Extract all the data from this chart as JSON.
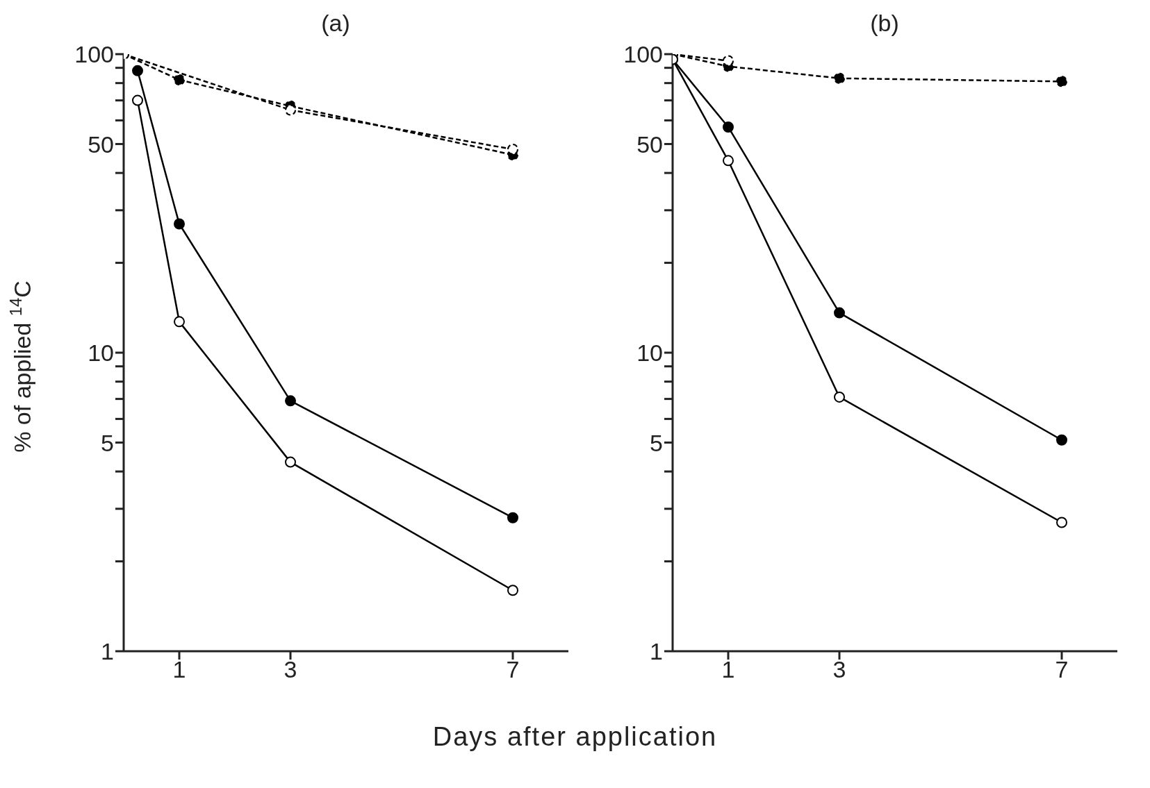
{
  "chart_data": [
    {
      "type": "line",
      "title": "(a)",
      "xlabel": "Days after application",
      "ylabel": "% of applied $^{14}$C",
      "log": "y",
      "xlim": [
        0,
        8
      ],
      "xticks": [
        1,
        3,
        7
      ],
      "ylim": [
        1,
        100
      ],
      "yticks": [
        1,
        {
          "value": 2,
          "label": null
        },
        {
          "value": 3,
          "label": null
        },
        {
          "value": 4,
          "label": null
        },
        5,
        {
          "value": 6,
          "label": null
        },
        {
          "value": 7,
          "label": null
        },
        {
          "value": 8,
          "label": null
        },
        {
          "value": 9,
          "label": null
        },
        10,
        {
          "value": 20,
          "label": null
        },
        {
          "value": 30,
          "label": null
        },
        {
          "value": 40,
          "label": null
        },
        50,
        {
          "value": 60,
          "label": null
        },
        {
          "value": 70,
          "label": null
        },
        {
          "value": 80,
          "label": null
        },
        {
          "value": 90,
          "label": null
        },
        100
      ],
      "grid": false,
      "series": [
        {
          "color": "#000000",
          "line_style": "dashed",
          "marker": "circle",
          "x": [
            0,
            1,
            3,
            7
          ],
          "values": [
            100,
            82,
            67,
            46
          ]
        },
        {
          "color": "#000000",
          "line_style": "dashed",
          "marker": "circle_open",
          "x": [
            0,
            3,
            7
          ],
          "values": [
            100,
            65,
            48
          ]
        },
        {
          "color": "#000000",
          "line_style": "solid",
          "marker": "circle",
          "x": [
            0.25,
            1,
            3,
            7
          ],
          "values": [
            88,
            27,
            6.9,
            2.8
          ]
        },
        {
          "color": "#000000",
          "line_style": "solid",
          "marker": "circle_open",
          "x": [
            0.25,
            1,
            3,
            7
          ],
          "values": [
            70,
            12.7,
            4.3,
            1.6
          ]
        }
      ]
    },
    {
      "type": "line",
      "title": "(b)",
      "log": "y",
      "xlim": [
        0,
        8
      ],
      "xticks": [
        1,
        3,
        7
      ],
      "ylim": [
        1,
        100
      ],
      "yticks": [
        1,
        {
          "value": 2,
          "label": null
        },
        {
          "value": 3,
          "label": null
        },
        {
          "value": 4,
          "label": null
        },
        5,
        {
          "value": 6,
          "label": null
        },
        {
          "value": 7,
          "label": null
        },
        {
          "value": 8,
          "label": null
        },
        {
          "value": 9,
          "label": null
        },
        10,
        {
          "value": 20,
          "label": null
        },
        {
          "value": 30,
          "label": null
        },
        {
          "value": 40,
          "label": null
        },
        50,
        {
          "value": 60,
          "label": null
        },
        {
          "value": 70,
          "label": null
        },
        {
          "value": 80,
          "label": null
        },
        {
          "value": 90,
          "label": null
        },
        100
      ],
      "grid": false,
      "series": [
        {
          "color": "#000000",
          "line_style": "dashed",
          "marker": "circle",
          "x": [
            0,
            1,
            3,
            7
          ],
          "values": [
            100,
            91,
            83,
            81
          ]
        },
        {
          "color": "#000000",
          "line_style": "dashed",
          "marker": "circle_open",
          "x": [
            0,
            1
          ],
          "values": [
            100,
            95
          ]
        },
        {
          "color": "#000000",
          "line_style": "solid",
          "marker": "circle",
          "x": [
            0,
            1,
            3,
            7
          ],
          "values": [
            96,
            57,
            13.6,
            5.1
          ]
        },
        {
          "color": "#000000",
          "line_style": "solid",
          "marker": "circle_open",
          "x": [
            0,
            1,
            3,
            7
          ],
          "values": [
            96,
            44,
            7.1,
            2.7
          ]
        }
      ]
    }
  ]
}
